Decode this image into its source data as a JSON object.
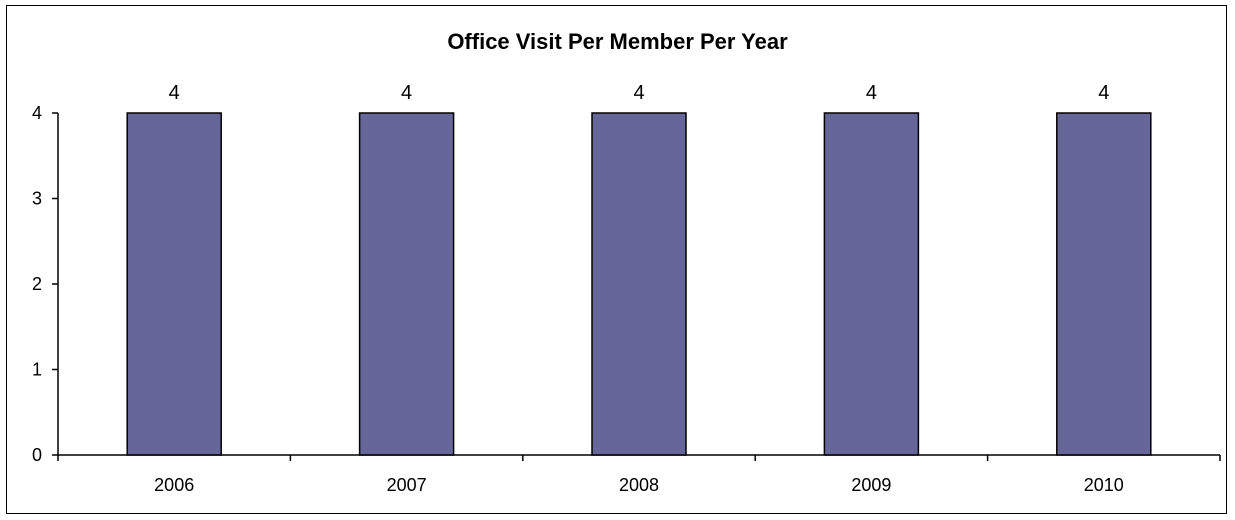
{
  "chart_data": {
    "type": "bar",
    "title": "Office Visit Per Member Per Year",
    "categories": [
      "2006",
      "2007",
      "2008",
      "2009",
      "2010"
    ],
    "values": [
      4,
      4,
      4,
      4,
      4
    ],
    "data_labels": [
      "4",
      "4",
      "4",
      "4",
      "4"
    ],
    "y_ticks": [
      "0",
      "1",
      "2",
      "3",
      "4"
    ],
    "ylim": [
      0,
      4
    ],
    "xlabel": "",
    "ylabel": "",
    "grid": false,
    "legend": "none",
    "bar_color": "#666699",
    "bar_edge_color": "#000000"
  }
}
